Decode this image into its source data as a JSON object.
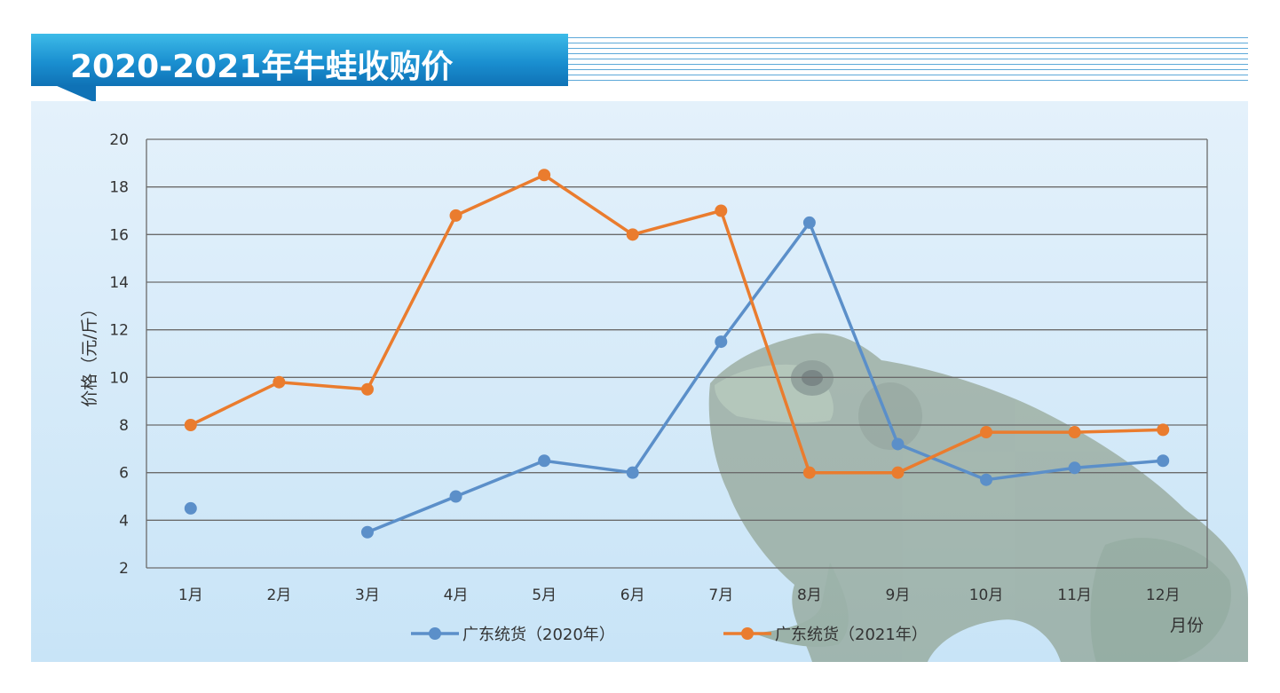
{
  "header": {
    "title": "2020-2021年牛蛙收购价"
  },
  "colors": {
    "series_2020": "#5b8fc9",
    "series_2021": "#ea7c2e",
    "banner": "#1a8fd0",
    "panel": "#d6ebf9",
    "grid": "#6b6b6b"
  },
  "decoration": {
    "background_image": "bullfrog-photo"
  },
  "chart_data": {
    "type": "line",
    "categories": [
      "1月",
      "2月",
      "3月",
      "4月",
      "5月",
      "6月",
      "7月",
      "8月",
      "9月",
      "10月",
      "11月",
      "12月"
    ],
    "series": [
      {
        "name": "广东统货（2020年）",
        "values": [
          4.5,
          null,
          3.5,
          5.0,
          6.5,
          6.0,
          11.5,
          16.5,
          7.2,
          5.7,
          6.2,
          6.5
        ]
      },
      {
        "name": "广东统货（2021年）",
        "values": [
          8.0,
          9.8,
          9.5,
          16.8,
          18.5,
          16.0,
          17.0,
          6.0,
          6.0,
          7.7,
          7.7,
          7.8
        ]
      }
    ],
    "ylabel": "价格（元/斤）",
    "xlabel": "月份",
    "ylim": [
      2,
      20
    ],
    "yticks": [
      2,
      4,
      6,
      8,
      10,
      12,
      14,
      16,
      18,
      20
    ],
    "grid": true,
    "legend": "bottom"
  }
}
